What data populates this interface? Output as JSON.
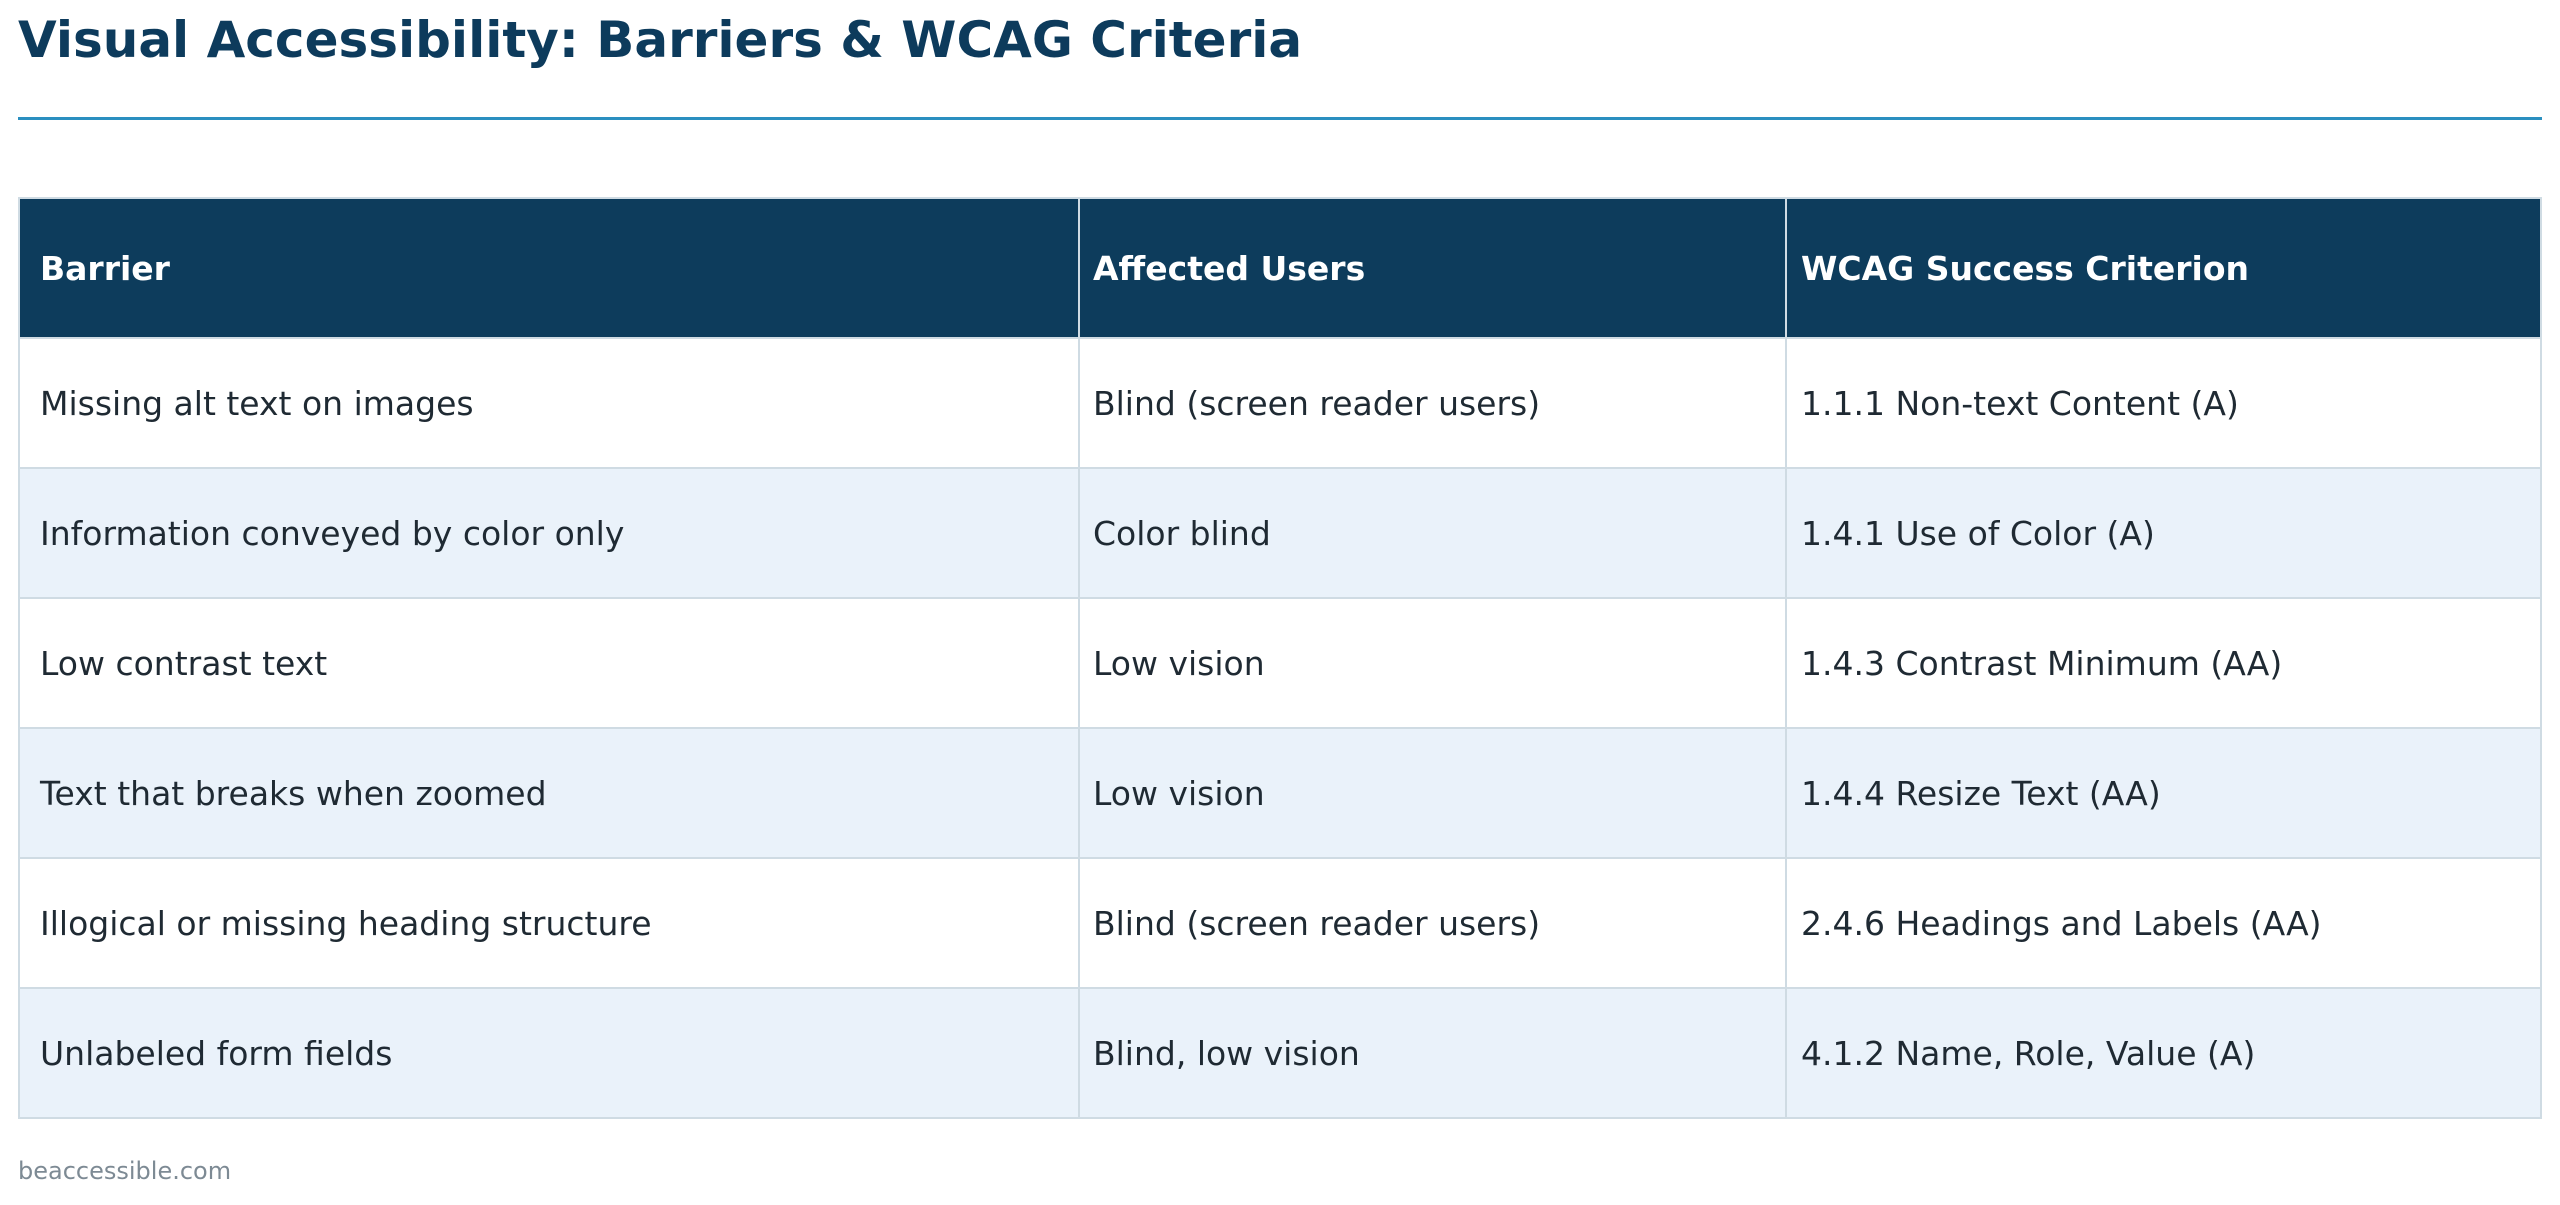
{
  "page": {
    "title": "Visual Accessibility: Barriers & WCAG Criteria",
    "footer": "beaccessible.com"
  },
  "table": {
    "headers": [
      "Barrier",
      "Affected Users",
      "WCAG Success Criterion"
    ],
    "rows": [
      [
        "Missing alt text on images",
        "Blind (screen reader users)",
        "1.1.1 Non-text Content (A)"
      ],
      [
        "Information conveyed by color only",
        "Color blind",
        "1.4.1 Use of Color (A)"
      ],
      [
        "Low contrast text",
        "Low vision",
        "1.4.3 Contrast Minimum (AA)"
      ],
      [
        "Text that breaks when zoomed",
        "Low vision",
        "1.4.4 Resize Text (AA)"
      ],
      [
        "Illogical or missing heading structure",
        "Blind (screen reader users)",
        "2.4.6 Headings and Labels (AA)"
      ],
      [
        "Unlabeled form fields",
        "Blind, low vision",
        "4.1.2 Name, Role, Value (A)"
      ]
    ]
  },
  "colors": {
    "title": "#0d3b5c",
    "rule": "#2a8fc0",
    "header_bg": "#0d3c5c",
    "row_alt_bg": "#eaf2fa",
    "border": "#cfdbe3"
  }
}
